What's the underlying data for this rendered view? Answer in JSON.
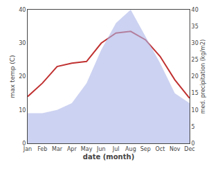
{
  "chart_data": {
    "type": "line",
    "xlabel": "date (month)",
    "ylabel": "max temp (C)",
    "y2label": "med. precipitation (kg/m2)",
    "categories": [
      "Jan",
      "Feb",
      "Mar",
      "Apr",
      "May",
      "Jun",
      "Jul",
      "Aug",
      "Sep",
      "Oct",
      "Nov",
      "Dec"
    ],
    "series": [
      {
        "type": "area",
        "axis": "y2",
        "color": "#aab4e8",
        "values": [
          9,
          9,
          10,
          12,
          18,
          28,
          36,
          40,
          32,
          24,
          15,
          12
        ]
      },
      {
        "type": "line",
        "color": "#c03030",
        "values": [
          14,
          18,
          23,
          24,
          24.5,
          30,
          33,
          33.5,
          31,
          26,
          19,
          13.5
        ]
      }
    ],
    "ylim": [
      0,
      40
    ],
    "yticks": [
      0,
      10,
      20,
      30,
      40
    ],
    "y2lim": [
      0,
      40
    ],
    "y2ticks": [
      0,
      5,
      10,
      15,
      20,
      25,
      30,
      35,
      40
    ],
    "grid": false
  }
}
